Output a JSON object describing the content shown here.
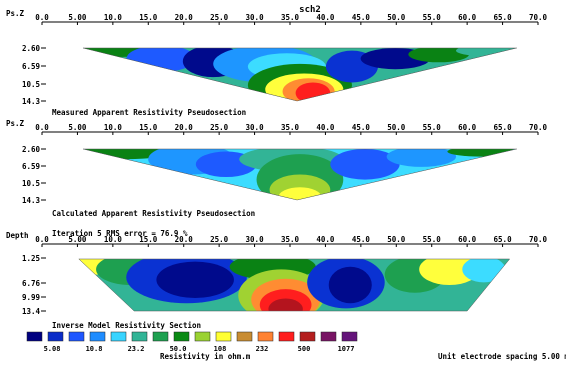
{
  "figure": {
    "title": "sch2",
    "footer_left": "Resistivity in ohm.m",
    "footer_right": "Unit electrode spacing 5.00 m"
  },
  "chart_data": {
    "type": "heatmap",
    "x_ticks": [
      "0.0",
      "5.00",
      "10.0",
      "15.0",
      "20.0",
      "25.0",
      "30.0",
      "35.0",
      "40.0",
      "45.0",
      "50.0",
      "55.0",
      "60.0",
      "65.0",
      "70.0"
    ],
    "x_range": [
      0,
      70
    ],
    "panels": [
      {
        "axis_label": "Ps.Z",
        "caption": "Measured Apparent Resistivity Pseudosection",
        "y_ticks": [
          "2.60",
          "6.59",
          "10.5",
          "14.3"
        ],
        "shape": "triangle",
        "extent": [
          5.8,
          67
        ],
        "apex_x": 36
      },
      {
        "axis_label": "Ps.Z",
        "caption": "Calculated Apparent Resistivity Pseudosection",
        "y_ticks": [
          "2.60",
          "6.59",
          "10.5",
          "14.3"
        ],
        "shape": "triangle",
        "extent": [
          5.8,
          67
        ],
        "apex_x": 36
      },
      {
        "axis_label": "Depth",
        "header": "Iteration 5 RMS error = 76.9 %",
        "y_ticks": [
          "1.25",
          "6.76",
          "9.99",
          "13.4"
        ],
        "shape": "trapezoid",
        "extent": [
          5.2,
          66
        ],
        "bottom_extent": [
          13,
          60
        ]
      }
    ],
    "legend": {
      "title": "Inverse Model Resistivity Section",
      "colors": [
        "#000080",
        "#0a2cc8",
        "#1e56ff",
        "#1e8cff",
        "#38d4ff",
        "#32b496",
        "#1ea050",
        "#0a8a14",
        "#9ad232",
        "#ffff32",
        "#c88c32",
        "#ff8232",
        "#ff1e1e",
        "#b41e1e",
        "#781464",
        "#64147a"
      ],
      "labels": [
        "5.08",
        "10.8",
        "23.2",
        "50.0",
        "108",
        "232",
        "500",
        "1077"
      ]
    }
  }
}
